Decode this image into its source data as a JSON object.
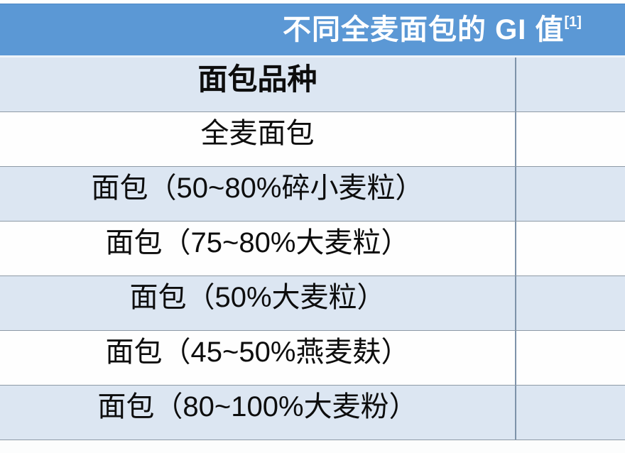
{
  "title": {
    "text": "不同全麦面包的 GI 值",
    "superscript": "[1]"
  },
  "table": {
    "header": {
      "label": "面包品种",
      "value": ""
    },
    "rows": [
      {
        "label": "全麦面包",
        "value": ""
      },
      {
        "label": "面包（50~80%碎小麦粒）",
        "value": ""
      },
      {
        "label": "面包（75~80%大麦粒）",
        "value": ""
      },
      {
        "label": "面包（50%大麦粒）",
        "value": ""
      },
      {
        "label": "面包（45~50%燕麦麸）",
        "value": ""
      },
      {
        "label": "面包（80~100%大麦粉）",
        "value": ""
      }
    ]
  },
  "colors": {
    "title_bg": "#5b98d5",
    "title_text": "#ffffff",
    "banded_row_bg": "#dce6f2",
    "plain_row_bg": "#fefefe",
    "row_border": "#8e9aa6",
    "column_divider": "#7e93aa",
    "body_text": "#0d0d0d"
  }
}
